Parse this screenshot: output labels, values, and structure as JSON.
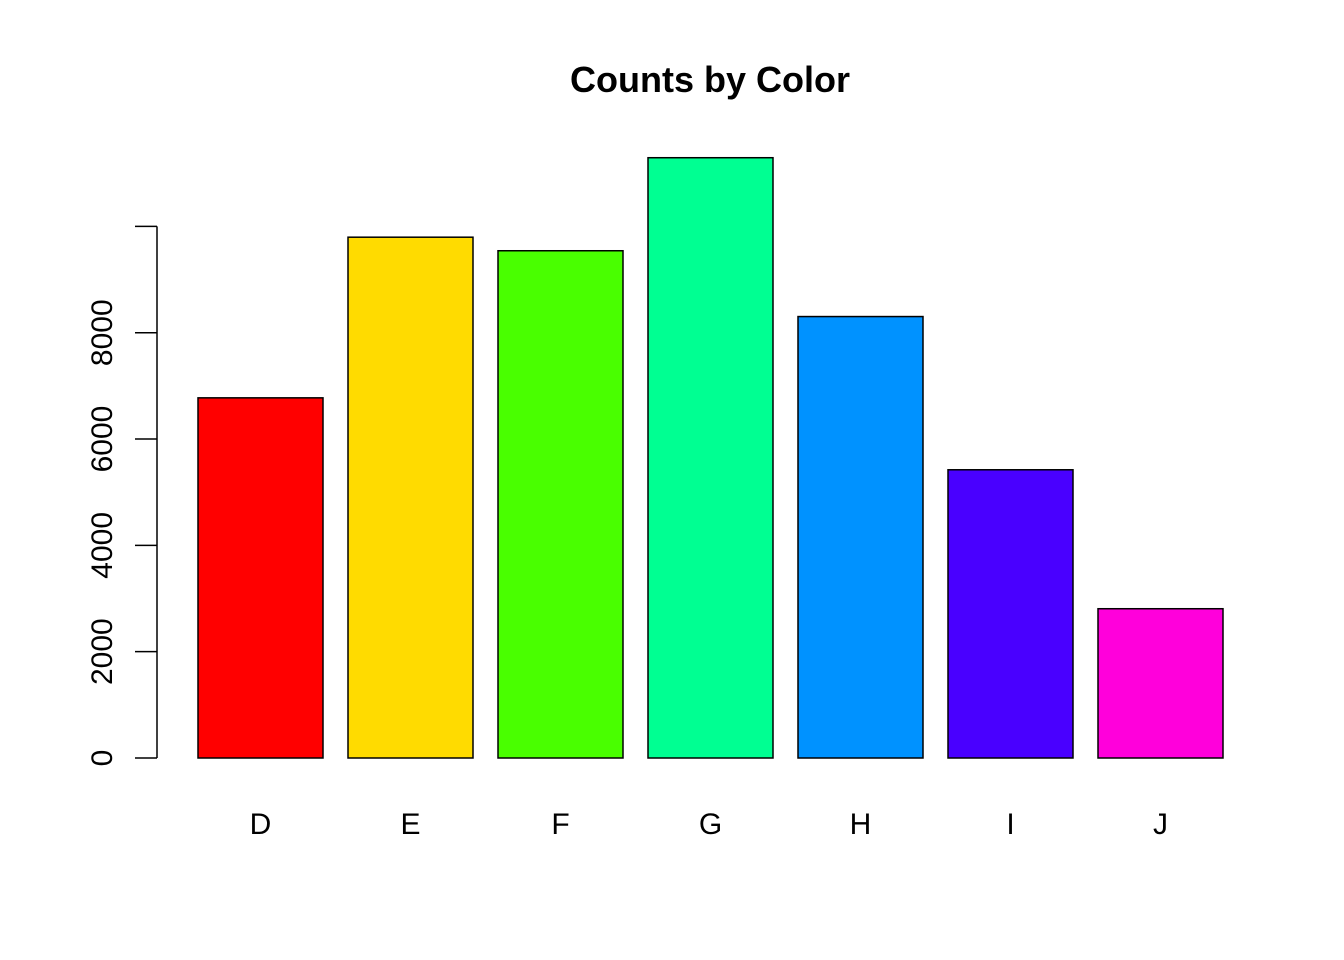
{
  "chart_data": {
    "type": "bar",
    "title": "Counts by Color",
    "xlabel": "",
    "ylabel": "",
    "categories": [
      "D",
      "E",
      "F",
      "G",
      "H",
      "I",
      "J"
    ],
    "values": [
      6775,
      9797,
      9542,
      11292,
      8304,
      5422,
      2808
    ],
    "colors": [
      "#FF0000",
      "#FFDB00",
      "#49FF00",
      "#00FF92",
      "#0092FF",
      "#4900FF",
      "#FF00DB"
    ],
    "ylim": [
      0,
      11292
    ],
    "yticks": [
      "0",
      "2000",
      "4000",
      "6000",
      "8000"
    ],
    "grid": false,
    "legend": "none"
  }
}
